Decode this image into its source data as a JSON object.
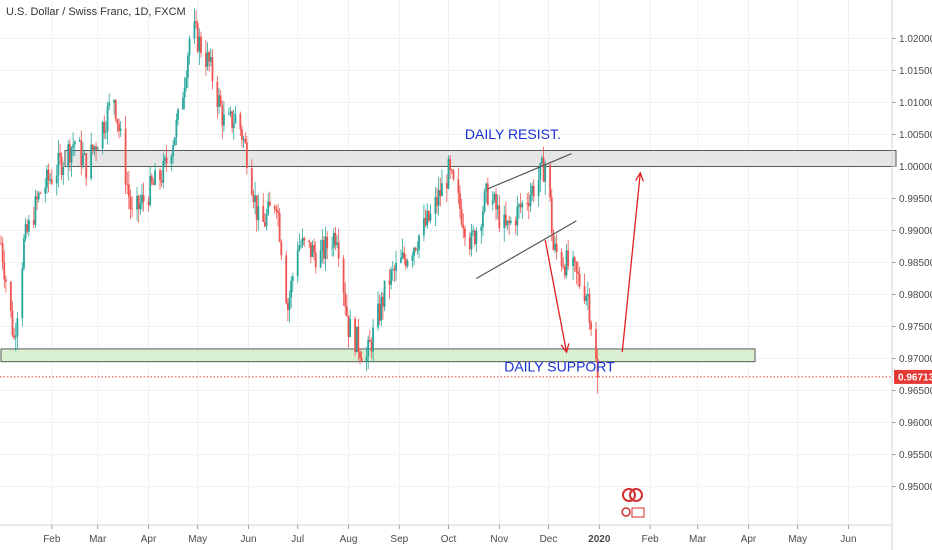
{
  "header": {
    "title": "U.S. Dollar / Swiss Franc, 1D, FXCM"
  },
  "colors": {
    "up": "#26a69a",
    "down": "#ef5350",
    "annotation": "#1530d4",
    "arrow": "#e02020",
    "last_price": "#e53935"
  },
  "chart_data": {
    "type": "candlestick",
    "symbol": "U.S. Dollar / Swiss Franc",
    "timeframe": "1D",
    "source": "FXCM",
    "ylim": [
      0.944,
      1.026
    ],
    "y_ticks": [
      "1.02000",
      "1.01500",
      "1.01000",
      "1.00500",
      "1.00000",
      "0.99500",
      "0.99000",
      "0.98500",
      "0.98000",
      "0.97500",
      "0.97000",
      "0.96500",
      "0.96000",
      "0.95500",
      "0.95000"
    ],
    "x_ticks": [
      {
        "label": "Feb",
        "date": "2019-02-01"
      },
      {
        "label": "Mar",
        "date": "2019-03-01"
      },
      {
        "label": "Apr",
        "date": "2019-04-01"
      },
      {
        "label": "May",
        "date": "2019-05-01"
      },
      {
        "label": "Jun",
        "date": "2019-06-01"
      },
      {
        "label": "Jul",
        "date": "2019-07-01"
      },
      {
        "label": "Aug",
        "date": "2019-08-01"
      },
      {
        "label": "Sep",
        "date": "2019-09-01"
      },
      {
        "label": "Oct",
        "date": "2019-10-01"
      },
      {
        "label": "Nov",
        "date": "2019-11-01"
      },
      {
        "label": "Dec",
        "date": "2019-12-01"
      },
      {
        "label": "2020",
        "date": "2020-01-01"
      },
      {
        "label": "Feb",
        "date": "2020-02-01"
      },
      {
        "label": "Mar",
        "date": "2020-03-01"
      },
      {
        "label": "Apr",
        "date": "2020-04-01"
      },
      {
        "label": "May",
        "date": "2020-05-01"
      },
      {
        "label": "Jun",
        "date": "2020-06-01"
      }
    ],
    "price_path": [
      {
        "date": "2019-01-01",
        "close": 0.988
      },
      {
        "date": "2019-01-09",
        "close": 0.973
      },
      {
        "date": "2019-01-15",
        "close": 0.988
      },
      {
        "date": "2019-01-25",
        "close": 0.996
      },
      {
        "date": "2019-02-05",
        "close": 1.0
      },
      {
        "date": "2019-02-15",
        "close": 1.004
      },
      {
        "date": "2019-02-22",
        "close": 1.0
      },
      {
        "date": "2019-03-05",
        "close": 1.007
      },
      {
        "date": "2019-03-11",
        "close": 1.011
      },
      {
        "date": "2019-03-22",
        "close": 0.992
      },
      {
        "date": "2019-04-01",
        "close": 0.996
      },
      {
        "date": "2019-04-10",
        "close": 0.999
      },
      {
        "date": "2019-04-20",
        "close": 1.008
      },
      {
        "date": "2019-04-27",
        "close": 1.022
      },
      {
        "date": "2019-05-08",
        "close": 1.016
      },
      {
        "date": "2019-05-18",
        "close": 1.006
      },
      {
        "date": "2019-05-25",
        "close": 1.008
      },
      {
        "date": "2019-06-01",
        "close": 1.001
      },
      {
        "date": "2019-06-08",
        "close": 0.99
      },
      {
        "date": "2019-06-18",
        "close": 0.995
      },
      {
        "date": "2019-06-25",
        "close": 0.978
      },
      {
        "date": "2019-07-01",
        "close": 0.988
      },
      {
        "date": "2019-07-15",
        "close": 0.986
      },
      {
        "date": "2019-07-25",
        "close": 0.99
      },
      {
        "date": "2019-08-01",
        "close": 0.975
      },
      {
        "date": "2019-08-12",
        "close": 0.97
      },
      {
        "date": "2019-08-25",
        "close": 0.982
      },
      {
        "date": "2019-09-05",
        "close": 0.986
      },
      {
        "date": "2019-09-20",
        "close": 0.992
      },
      {
        "date": "2019-10-01",
        "close": 0.999
      },
      {
        "date": "2019-10-15",
        "close": 0.988
      },
      {
        "date": "2019-10-25",
        "close": 0.996
      },
      {
        "date": "2019-11-05",
        "close": 0.99
      },
      {
        "date": "2019-11-15",
        "close": 0.994
      },
      {
        "date": "2019-11-25",
        "close": 0.998
      },
      {
        "date": "2019-11-30",
        "close": 1.001
      },
      {
        "date": "2019-12-04",
        "close": 0.987
      },
      {
        "date": "2019-12-15",
        "close": 0.984
      },
      {
        "date": "2019-12-25",
        "close": 0.98
      },
      {
        "date": "2019-12-31",
        "close": 0.9671
      }
    ],
    "zones": [
      {
        "name": "DAILY RESIST.",
        "from": 1.0,
        "to": 1.0025,
        "start": "2019-02-09",
        "end": "2020-06-30"
      },
      {
        "name": "DAILY SUPPORT",
        "from": 0.9695,
        "to": 0.9715,
        "start": "2019-01-01",
        "end": "2020-04-05"
      }
    ],
    "annotations": [
      {
        "text": "DAILY RESIST.",
        "date": "2019-10-11",
        "price": 1.0043
      },
      {
        "text": "DAILY SUPPORT",
        "date": "2019-11-04",
        "price": 0.968
      }
    ],
    "channel": [
      {
        "from": {
          "date": "2019-10-18",
          "price": 0.9825
        },
        "to": {
          "date": "2019-12-18",
          "price": 0.9915
        }
      },
      {
        "from": {
          "date": "2019-10-25",
          "price": 0.9965
        },
        "to": {
          "date": "2019-12-15",
          "price": 1.002
        }
      }
    ],
    "arrows": [
      {
        "from": {
          "date": "2019-11-29",
          "price": 0.9885
        },
        "to": {
          "date": "2019-12-12",
          "price": 0.971
        }
      },
      {
        "from": {
          "date": "2020-01-15",
          "price": 0.971
        },
        "to": {
          "date": "2020-01-26",
          "price": 0.999
        }
      }
    ],
    "last_price": {
      "value": "0.96713",
      "price": 0.96713
    }
  }
}
